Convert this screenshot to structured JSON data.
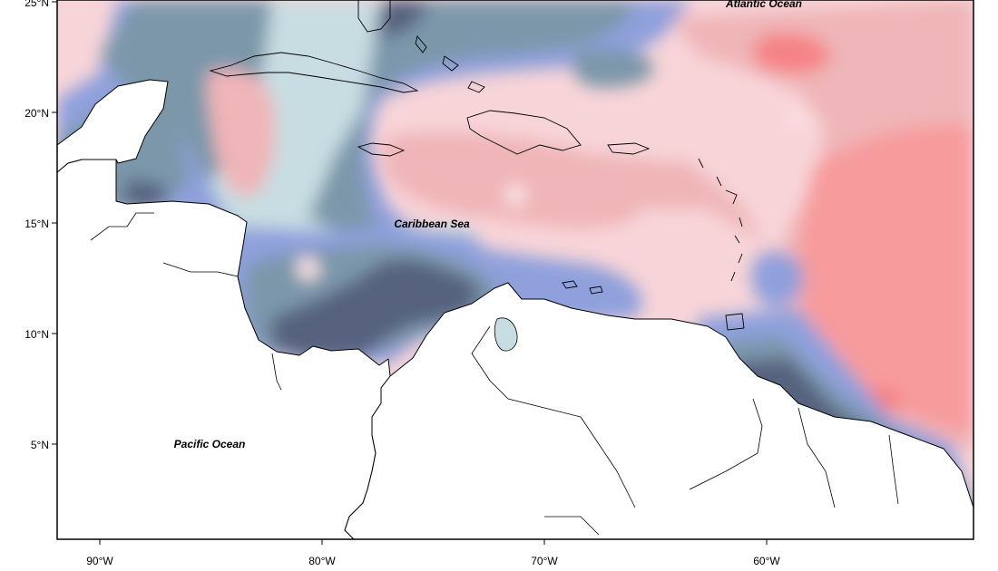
{
  "map": {
    "lat_labels": [
      "25°N",
      "20°N",
      "15°N",
      "10°N",
      "5°N"
    ],
    "lon_labels": [
      "90°W",
      "80°W",
      "70°W",
      "60°W"
    ],
    "places": {
      "atlantic": "Atlantic Ocean",
      "caribbean": "Caribbean Sea",
      "pacific": "Pacific Ocean"
    },
    "colors": {
      "dark_blue": "#57627e",
      "slate_blue": "#7b97aa",
      "periwinkle": "#8fa0dc",
      "pale_cyan": "#c7dde2",
      "lightest_pink": "#fde5e8",
      "light_pink": "#f7d4d8",
      "pink": "#efb5b8",
      "salmon": "#f79b9d",
      "deep_salmon": "#f58385",
      "navy": "#3d4d8d",
      "land": "#ffffff"
    }
  }
}
